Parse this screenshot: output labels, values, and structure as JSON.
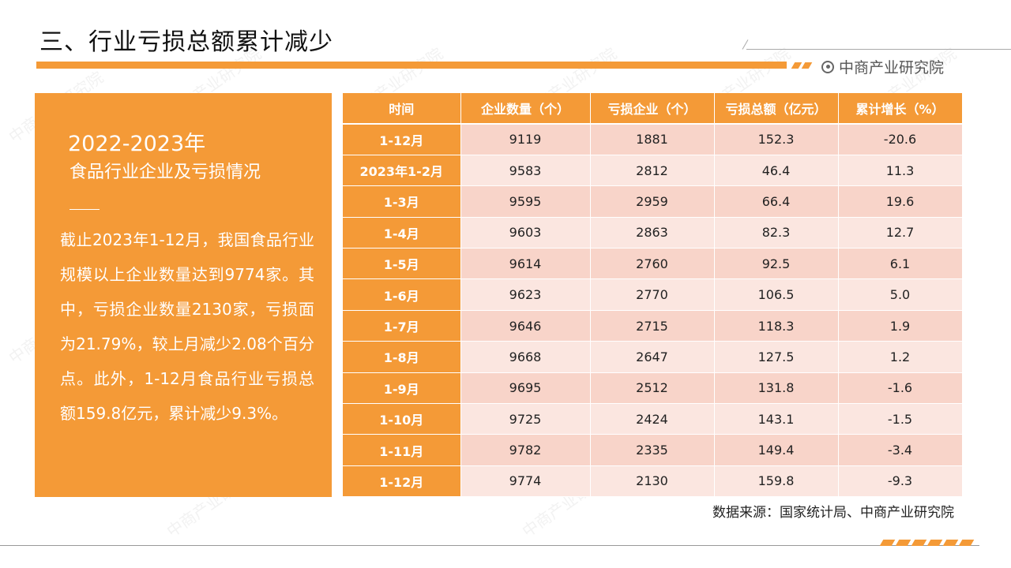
{
  "header": {
    "title": "三、行业亏损总额累计减少",
    "brand": "中商产业研究院"
  },
  "left_panel": {
    "year": "2022-2023年",
    "subtitle": "食品行业企业及亏损情况",
    "paragraph": "截止2023年1-12月，我国食品行业规模以上企业数量达到9774家。其中，亏损企业数量2130家，亏损面为21.79%，较上月减少2.08个百分点。此外，1-12月食品行业亏损总额159.8亿元，累计减少9.3%。"
  },
  "table": {
    "headers": [
      "时间",
      "企业数量（个）",
      "亏损企业（个）",
      "亏损总额（亿元）",
      "累计增长（%）"
    ],
    "rows": [
      [
        "1-12月",
        "9119",
        "1881",
        "152.3",
        "-20.6"
      ],
      [
        "2023年1-2月",
        "9583",
        "2812",
        "46.4",
        "11.3"
      ],
      [
        "1-3月",
        "9595",
        "2959",
        "66.4",
        "19.6"
      ],
      [
        "1-4月",
        "9603",
        "2863",
        "82.3",
        "12.7"
      ],
      [
        "1-5月",
        "9614",
        "2760",
        "92.5",
        "6.1"
      ],
      [
        "1-6月",
        "9623",
        "2770",
        "106.5",
        "5.0"
      ],
      [
        "1-7月",
        "9646",
        "2715",
        "118.3",
        "1.9"
      ],
      [
        "1-8月",
        "9668",
        "2647",
        "127.5",
        "1.2"
      ],
      [
        "1-9月",
        "9695",
        "2512",
        "131.8",
        "-1.6"
      ],
      [
        "1-10月",
        "9725",
        "2424",
        "143.1",
        "-1.5"
      ],
      [
        "1-11月",
        "9782",
        "2335",
        "149.4",
        "-3.4"
      ],
      [
        "1-12月",
        "9774",
        "2130",
        "159.8",
        "-9.3"
      ]
    ]
  },
  "source": "数据来源：国家统计局、中商产业研究院",
  "colors": {
    "accent": "#f49a37",
    "row_dark": "#f8d4c9",
    "row_light": "#fbe6e0"
  }
}
